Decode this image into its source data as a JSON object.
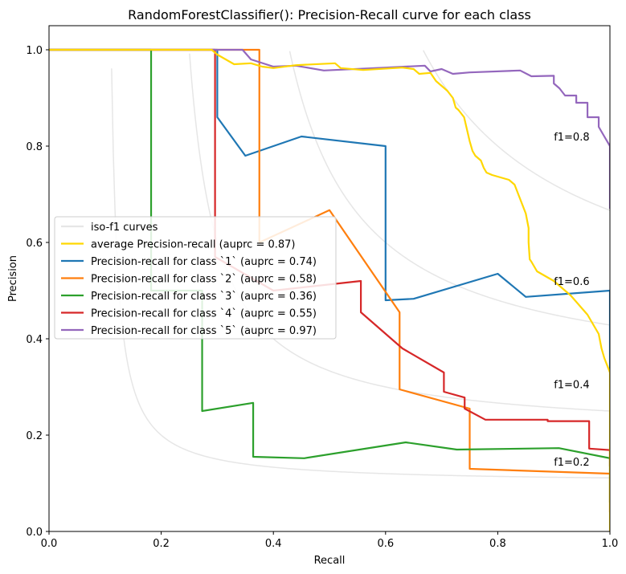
{
  "chart_data": {
    "type": "line",
    "title": "RandomForestClassifier(): Precision-Recall curve for each class",
    "xlabel": "Recall",
    "ylabel": "Precision",
    "xlim": [
      0.0,
      1.0
    ],
    "ylim": [
      0.0,
      1.05
    ],
    "xticks": [
      "0.0",
      "0.2",
      "0.4",
      "0.6",
      "0.8",
      "1.0"
    ],
    "yticks": [
      "0.0",
      "0.2",
      "0.4",
      "0.6",
      "0.8",
      "1.0"
    ],
    "legend_position": "center-left",
    "iso_f1": {
      "label": "iso-f1 curves",
      "color": "#e6e6e6",
      "levels": [
        0.2,
        0.4,
        0.6,
        0.8
      ],
      "labels": [
        "f1=0.2",
        "f1=0.4",
        "f1=0.6",
        "f1=0.8"
      ]
    },
    "series": [
      {
        "name": "average Precision-recall (auprc = 0.87)",
        "color": "#ffd700",
        "points": [
          [
            0,
            1.0
          ],
          [
            0.29,
            1.0
          ],
          [
            0.3,
            0.99
          ],
          [
            0.33,
            0.97
          ],
          [
            0.36,
            0.972
          ],
          [
            0.38,
            0.965
          ],
          [
            0.4,
            0.962
          ],
          [
            0.44,
            0.968
          ],
          [
            0.51,
            0.972
          ],
          [
            0.52,
            0.962
          ],
          [
            0.56,
            0.958
          ],
          [
            0.63,
            0.963
          ],
          [
            0.65,
            0.96
          ],
          [
            0.66,
            0.95
          ],
          [
            0.68,
            0.952
          ],
          [
            0.69,
            0.935
          ],
          [
            0.7,
            0.925
          ],
          [
            0.71,
            0.915
          ],
          [
            0.72,
            0.9
          ],
          [
            0.725,
            0.88
          ],
          [
            0.73,
            0.875
          ],
          [
            0.74,
            0.86
          ],
          [
            0.75,
            0.81
          ],
          [
            0.755,
            0.79
          ],
          [
            0.76,
            0.78
          ],
          [
            0.77,
            0.77
          ],
          [
            0.775,
            0.755
          ],
          [
            0.78,
            0.745
          ],
          [
            0.79,
            0.74
          ],
          [
            0.82,
            0.73
          ],
          [
            0.83,
            0.72
          ],
          [
            0.84,
            0.69
          ],
          [
            0.85,
            0.66
          ],
          [
            0.855,
            0.63
          ],
          [
            0.855,
            0.6
          ],
          [
            0.857,
            0.565
          ],
          [
            0.86,
            0.56
          ],
          [
            0.87,
            0.54
          ],
          [
            0.9,
            0.52
          ],
          [
            0.93,
            0.49
          ],
          [
            0.96,
            0.45
          ],
          [
            0.98,
            0.41
          ],
          [
            0.985,
            0.38
          ],
          [
            0.99,
            0.36
          ],
          [
            1.0,
            0.33
          ],
          [
            1.0,
            0.0
          ]
        ]
      },
      {
        "name": "Precision-recall for class `1` (auprc = 0.74)",
        "color": "#1f77b4",
        "points": [
          [
            0,
            1.0
          ],
          [
            0.3,
            1.0
          ],
          [
            0.3,
            0.86
          ],
          [
            0.35,
            0.78
          ],
          [
            0.4,
            0.8
          ],
          [
            0.45,
            0.82
          ],
          [
            0.6,
            0.8
          ],
          [
            0.6,
            0.48
          ],
          [
            0.65,
            0.483
          ],
          [
            0.8,
            0.535
          ],
          [
            0.85,
            0.487
          ],
          [
            1.0,
            0.5
          ],
          [
            1.0,
            0.33
          ]
        ]
      },
      {
        "name": "Precision-recall for class `2` (auprc = 0.58)",
        "color": "#ff7f0e",
        "points": [
          [
            0,
            1.0
          ],
          [
            0.375,
            1.0
          ],
          [
            0.375,
            0.6
          ],
          [
            0.5,
            0.667
          ],
          [
            0.625,
            0.455
          ],
          [
            0.625,
            0.295
          ],
          [
            0.75,
            0.255
          ],
          [
            0.75,
            0.13
          ],
          [
            1.0,
            0.12
          ],
          [
            1.0,
            0.04
          ]
        ]
      },
      {
        "name": "Precision-recall for class `3` (auprc = 0.36)",
        "color": "#2ca02c",
        "points": [
          [
            0,
            1.0
          ],
          [
            0.182,
            1.0
          ],
          [
            0.182,
            0.5
          ],
          [
            0.273,
            0.5
          ],
          [
            0.273,
            0.25
          ],
          [
            0.364,
            0.267
          ],
          [
            0.364,
            0.155
          ],
          [
            0.455,
            0.152
          ],
          [
            0.636,
            0.185
          ],
          [
            0.727,
            0.17
          ],
          [
            0.909,
            0.173
          ],
          [
            1.0,
            0.152
          ],
          [
            1.0,
            0.06
          ]
        ]
      },
      {
        "name": "Precision-recall for class `4` (auprc = 0.55)",
        "color": "#d62728",
        "points": [
          [
            0,
            1.0
          ],
          [
            0.296,
            1.0
          ],
          [
            0.296,
            0.57
          ],
          [
            0.4,
            0.5
          ],
          [
            0.556,
            0.52
          ],
          [
            0.556,
            0.455
          ],
          [
            0.63,
            0.38
          ],
          [
            0.704,
            0.33
          ],
          [
            0.704,
            0.29
          ],
          [
            0.741,
            0.278
          ],
          [
            0.741,
            0.255
          ],
          [
            0.778,
            0.232
          ],
          [
            0.889,
            0.232
          ],
          [
            0.889,
            0.229
          ],
          [
            0.963,
            0.229
          ],
          [
            0.963,
            0.172
          ],
          [
            1.0,
            0.169
          ],
          [
            1.0,
            0.135
          ]
        ]
      },
      {
        "name": "Precision-recall for class `5` (auprc = 0.97)",
        "color": "#9467bd",
        "points": [
          [
            0,
            1.0
          ],
          [
            0.345,
            1.0
          ],
          [
            0.36,
            0.98
          ],
          [
            0.4,
            0.965
          ],
          [
            0.44,
            0.967
          ],
          [
            0.49,
            0.957
          ],
          [
            0.6,
            0.963
          ],
          [
            0.67,
            0.967
          ],
          [
            0.68,
            0.955
          ],
          [
            0.7,
            0.96
          ],
          [
            0.72,
            0.95
          ],
          [
            0.75,
            0.953
          ],
          [
            0.84,
            0.957
          ],
          [
            0.86,
            0.945
          ],
          [
            0.9,
            0.946
          ],
          [
            0.9,
            0.93
          ],
          [
            0.91,
            0.92
          ],
          [
            0.92,
            0.905
          ],
          [
            0.94,
            0.905
          ],
          [
            0.94,
            0.89
          ],
          [
            0.96,
            0.89
          ],
          [
            0.96,
            0.86
          ],
          [
            0.98,
            0.86
          ],
          [
            0.98,
            0.84
          ],
          [
            0.99,
            0.82
          ],
          [
            1.0,
            0.8
          ],
          [
            1.0,
            0.67
          ]
        ]
      }
    ]
  }
}
